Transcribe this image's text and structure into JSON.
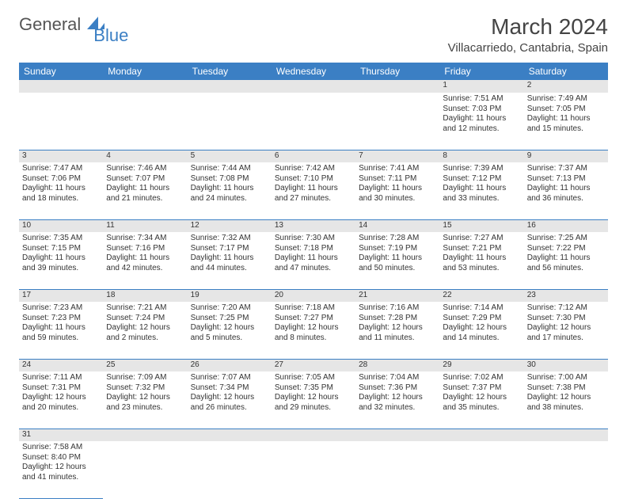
{
  "logo": {
    "gen": "General",
    "blue": "Blue"
  },
  "title": "March 2024",
  "location": "Villacarriedo, Cantabria, Spain",
  "colors": {
    "header_bg": "#3b7fc4",
    "header_fg": "#ffffff",
    "daynum_bg": "#e6e6e6",
    "border": "#3b7fc4",
    "text": "#333333"
  },
  "weekdays": [
    "Sunday",
    "Monday",
    "Tuesday",
    "Wednesday",
    "Thursday",
    "Friday",
    "Saturday"
  ],
  "weeks": [
    [
      null,
      null,
      null,
      null,
      null,
      {
        "n": "1",
        "sr": "Sunrise: 7:51 AM",
        "ss": "Sunset: 7:03 PM",
        "d1": "Daylight: 11 hours",
        "d2": "and 12 minutes."
      },
      {
        "n": "2",
        "sr": "Sunrise: 7:49 AM",
        "ss": "Sunset: 7:05 PM",
        "d1": "Daylight: 11 hours",
        "d2": "and 15 minutes."
      }
    ],
    [
      {
        "n": "3",
        "sr": "Sunrise: 7:47 AM",
        "ss": "Sunset: 7:06 PM",
        "d1": "Daylight: 11 hours",
        "d2": "and 18 minutes."
      },
      {
        "n": "4",
        "sr": "Sunrise: 7:46 AM",
        "ss": "Sunset: 7:07 PM",
        "d1": "Daylight: 11 hours",
        "d2": "and 21 minutes."
      },
      {
        "n": "5",
        "sr": "Sunrise: 7:44 AM",
        "ss": "Sunset: 7:08 PM",
        "d1": "Daylight: 11 hours",
        "d2": "and 24 minutes."
      },
      {
        "n": "6",
        "sr": "Sunrise: 7:42 AM",
        "ss": "Sunset: 7:10 PM",
        "d1": "Daylight: 11 hours",
        "d2": "and 27 minutes."
      },
      {
        "n": "7",
        "sr": "Sunrise: 7:41 AM",
        "ss": "Sunset: 7:11 PM",
        "d1": "Daylight: 11 hours",
        "d2": "and 30 minutes."
      },
      {
        "n": "8",
        "sr": "Sunrise: 7:39 AM",
        "ss": "Sunset: 7:12 PM",
        "d1": "Daylight: 11 hours",
        "d2": "and 33 minutes."
      },
      {
        "n": "9",
        "sr": "Sunrise: 7:37 AM",
        "ss": "Sunset: 7:13 PM",
        "d1": "Daylight: 11 hours",
        "d2": "and 36 minutes."
      }
    ],
    [
      {
        "n": "10",
        "sr": "Sunrise: 7:35 AM",
        "ss": "Sunset: 7:15 PM",
        "d1": "Daylight: 11 hours",
        "d2": "and 39 minutes."
      },
      {
        "n": "11",
        "sr": "Sunrise: 7:34 AM",
        "ss": "Sunset: 7:16 PM",
        "d1": "Daylight: 11 hours",
        "d2": "and 42 minutes."
      },
      {
        "n": "12",
        "sr": "Sunrise: 7:32 AM",
        "ss": "Sunset: 7:17 PM",
        "d1": "Daylight: 11 hours",
        "d2": "and 44 minutes."
      },
      {
        "n": "13",
        "sr": "Sunrise: 7:30 AM",
        "ss": "Sunset: 7:18 PM",
        "d1": "Daylight: 11 hours",
        "d2": "and 47 minutes."
      },
      {
        "n": "14",
        "sr": "Sunrise: 7:28 AM",
        "ss": "Sunset: 7:19 PM",
        "d1": "Daylight: 11 hours",
        "d2": "and 50 minutes."
      },
      {
        "n": "15",
        "sr": "Sunrise: 7:27 AM",
        "ss": "Sunset: 7:21 PM",
        "d1": "Daylight: 11 hours",
        "d2": "and 53 minutes."
      },
      {
        "n": "16",
        "sr": "Sunrise: 7:25 AM",
        "ss": "Sunset: 7:22 PM",
        "d1": "Daylight: 11 hours",
        "d2": "and 56 minutes."
      }
    ],
    [
      {
        "n": "17",
        "sr": "Sunrise: 7:23 AM",
        "ss": "Sunset: 7:23 PM",
        "d1": "Daylight: 11 hours",
        "d2": "and 59 minutes."
      },
      {
        "n": "18",
        "sr": "Sunrise: 7:21 AM",
        "ss": "Sunset: 7:24 PM",
        "d1": "Daylight: 12 hours",
        "d2": "and 2 minutes."
      },
      {
        "n": "19",
        "sr": "Sunrise: 7:20 AM",
        "ss": "Sunset: 7:25 PM",
        "d1": "Daylight: 12 hours",
        "d2": "and 5 minutes."
      },
      {
        "n": "20",
        "sr": "Sunrise: 7:18 AM",
        "ss": "Sunset: 7:27 PM",
        "d1": "Daylight: 12 hours",
        "d2": "and 8 minutes."
      },
      {
        "n": "21",
        "sr": "Sunrise: 7:16 AM",
        "ss": "Sunset: 7:28 PM",
        "d1": "Daylight: 12 hours",
        "d2": "and 11 minutes."
      },
      {
        "n": "22",
        "sr": "Sunrise: 7:14 AM",
        "ss": "Sunset: 7:29 PM",
        "d1": "Daylight: 12 hours",
        "d2": "and 14 minutes."
      },
      {
        "n": "23",
        "sr": "Sunrise: 7:12 AM",
        "ss": "Sunset: 7:30 PM",
        "d1": "Daylight: 12 hours",
        "d2": "and 17 minutes."
      }
    ],
    [
      {
        "n": "24",
        "sr": "Sunrise: 7:11 AM",
        "ss": "Sunset: 7:31 PM",
        "d1": "Daylight: 12 hours",
        "d2": "and 20 minutes."
      },
      {
        "n": "25",
        "sr": "Sunrise: 7:09 AM",
        "ss": "Sunset: 7:32 PM",
        "d1": "Daylight: 12 hours",
        "d2": "and 23 minutes."
      },
      {
        "n": "26",
        "sr": "Sunrise: 7:07 AM",
        "ss": "Sunset: 7:34 PM",
        "d1": "Daylight: 12 hours",
        "d2": "and 26 minutes."
      },
      {
        "n": "27",
        "sr": "Sunrise: 7:05 AM",
        "ss": "Sunset: 7:35 PM",
        "d1": "Daylight: 12 hours",
        "d2": "and 29 minutes."
      },
      {
        "n": "28",
        "sr": "Sunrise: 7:04 AM",
        "ss": "Sunset: 7:36 PM",
        "d1": "Daylight: 12 hours",
        "d2": "and 32 minutes."
      },
      {
        "n": "29",
        "sr": "Sunrise: 7:02 AM",
        "ss": "Sunset: 7:37 PM",
        "d1": "Daylight: 12 hours",
        "d2": "and 35 minutes."
      },
      {
        "n": "30",
        "sr": "Sunrise: 7:00 AM",
        "ss": "Sunset: 7:38 PM",
        "d1": "Daylight: 12 hours",
        "d2": "and 38 minutes."
      }
    ],
    [
      {
        "n": "31",
        "sr": "Sunrise: 7:58 AM",
        "ss": "Sunset: 8:40 PM",
        "d1": "Daylight: 12 hours",
        "d2": "and 41 minutes."
      },
      null,
      null,
      null,
      null,
      null,
      null
    ]
  ]
}
